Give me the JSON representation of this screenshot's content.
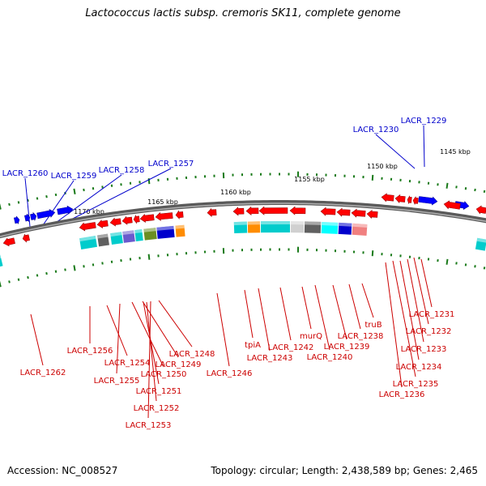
{
  "title": "Lactococcus lactis subsp. cremoris SK11, complete genome",
  "footer": {
    "accession": "Accession: NC_008527",
    "summary": "Topology: circular; Length: 2,438,589 bp; Genes: 2,465"
  },
  "colors": {
    "forward_label": "#0000cc",
    "reverse_label": "#cc0000",
    "forward_gene": "#0000ff",
    "reverse_gene": "#ff0000",
    "tick": "#1a7a1a",
    "backbone": "#808080"
  },
  "ruler": [
    "1145 kbp",
    "1150 kbp",
    "1155 kbp",
    "1160 kbp",
    "1165 kbp",
    "1170 kbp"
  ],
  "labels_forward": [
    "LACR_1229",
    "LACR_1230",
    "LACR_1257",
    "LACR_1258",
    "LACR_1259",
    "LACR_1260"
  ],
  "labels_reverse": [
    "LACR_1262",
    "LACR_1256",
    "LACR_1254",
    "LACR_1255",
    "LACR_1250",
    "LACR_1249",
    "LACR_1248",
    "LACR_1251",
    "LACR_1252",
    "LACR_1253",
    "LACR_1246",
    "tpiA",
    "LACR_1243",
    "LACR_1242",
    "murQ",
    "LACR_1240",
    "LACR_1239",
    "LACR_1238",
    "truB",
    "LACR_1231",
    "LACR_1232",
    "LACR_1233",
    "LACR_1234",
    "LACR_1235",
    "LACR_1236"
  ]
}
